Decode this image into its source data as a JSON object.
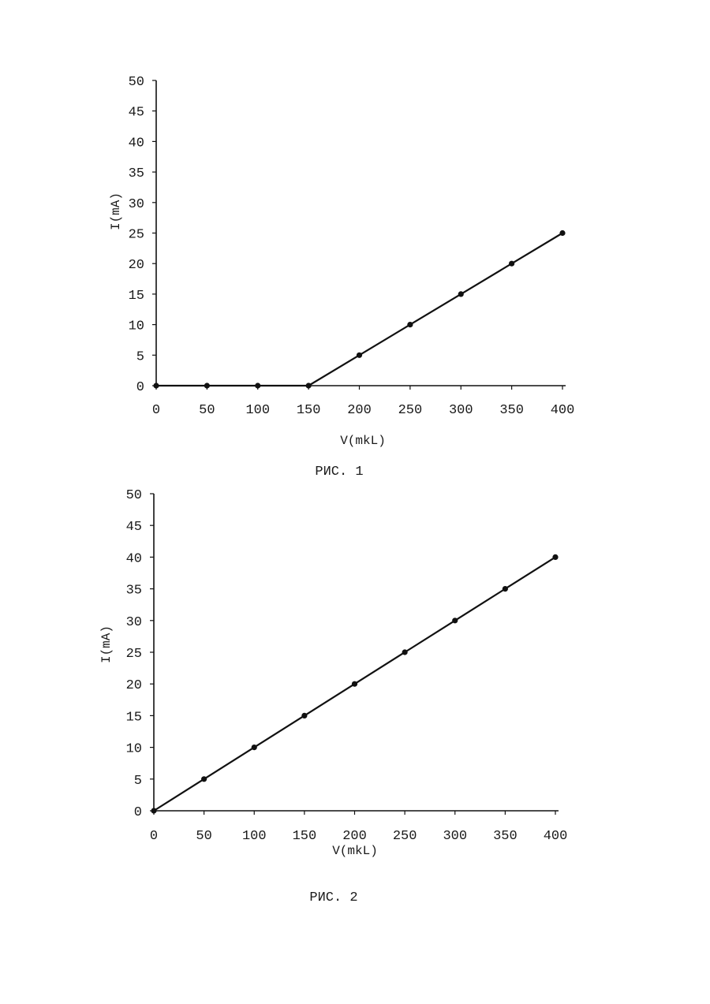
{
  "chart_data": [
    {
      "type": "line",
      "caption": "РИС. 1",
      "xlabel": "V(mkL)",
      "ylabel": "I(mA)",
      "xlim": [
        0,
        400
      ],
      "ylim": [
        0,
        50
      ],
      "x_ticks": [
        0,
        50,
        100,
        150,
        200,
        250,
        300,
        350,
        400
      ],
      "y_ticks": [
        0,
        5,
        10,
        15,
        20,
        25,
        30,
        35,
        40,
        45,
        50
      ],
      "grid": false,
      "x": [
        0,
        50,
        100,
        150,
        200,
        250,
        300,
        350,
        400
      ],
      "series": [
        {
          "values": [
            0,
            0,
            0,
            0,
            5,
            10,
            15,
            20,
            25
          ]
        }
      ]
    },
    {
      "type": "line",
      "caption": "РИС. 2",
      "xlabel": "V(mkL)",
      "ylabel": "I(mA)",
      "xlim": [
        0,
        400
      ],
      "ylim": [
        0,
        50
      ],
      "x_ticks": [
        0,
        50,
        100,
        150,
        200,
        250,
        300,
        350,
        400
      ],
      "y_ticks": [
        0,
        5,
        10,
        15,
        20,
        25,
        30,
        35,
        40,
        45,
        50
      ],
      "grid": false,
      "x": [
        0,
        50,
        100,
        150,
        200,
        250,
        300,
        350,
        400
      ],
      "series": [
        {
          "values": [
            0,
            5,
            10,
            15,
            20,
            25,
            30,
            35,
            40
          ]
        }
      ]
    }
  ]
}
